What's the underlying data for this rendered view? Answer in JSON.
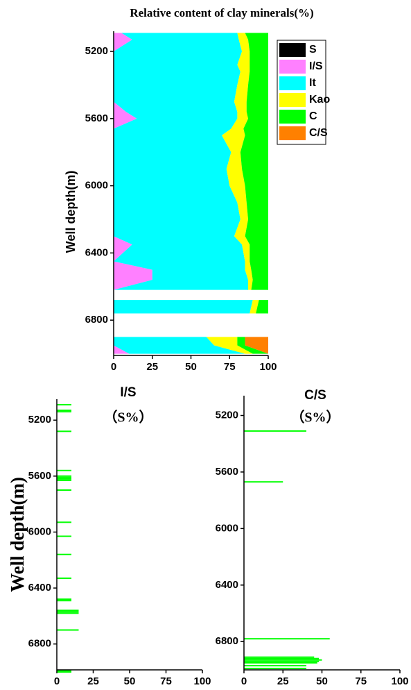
{
  "chart_data": [
    {
      "type": "area",
      "title": "Relative content of clay minerals(%)",
      "ylabel": "Well depth(m)",
      "y": [
        5090,
        5130,
        5200,
        5280,
        5320,
        5400,
        5500,
        5560,
        5600,
        5660,
        5700,
        5800,
        5900,
        6000,
        6100,
        6200,
        6300,
        6350,
        6450,
        6500,
        6560,
        6620,
        6650,
        6680,
        6760,
        6790,
        6900,
        6950,
        7000
      ],
      "series": [
        {
          "name": "S",
          "color": "#000000",
          "values": [
            0,
            0,
            0,
            0,
            0,
            0,
            0,
            0,
            0,
            0,
            0,
            0,
            0,
            0,
            0,
            0,
            0,
            0,
            0,
            0,
            0,
            0,
            null,
            0,
            0,
            null,
            0,
            0,
            0
          ]
        },
        {
          "name": "I/S",
          "color": "#ff80ff",
          "values": [
            5,
            12,
            0,
            0,
            0,
            0,
            0,
            8,
            15,
            0,
            0,
            0,
            0,
            0,
            0,
            0,
            0,
            12,
            0,
            25,
            25,
            0,
            null,
            0,
            0,
            null,
            0,
            0,
            10
          ]
        },
        {
          "name": "It",
          "color": "#00ffff",
          "values": [
            75,
            69,
            83,
            80,
            82,
            80,
            78,
            72,
            65,
            76,
            70,
            76,
            73,
            75,
            80,
            82,
            78,
            71,
            85,
            60,
            62,
            87,
            null,
            90,
            88,
            null,
            60,
            65,
            75
          ]
        },
        {
          "name": "Kao",
          "color": "#ffff00",
          "values": [
            5,
            6,
            5,
            8,
            6,
            7,
            8,
            6,
            7,
            8,
            15,
            6,
            10,
            10,
            6,
            5,
            7,
            5,
            3,
            4,
            3,
            2,
            null,
            4,
            4,
            null,
            20,
            15,
            5
          ]
        },
        {
          "name": "C",
          "color": "#00ff00",
          "values": [
            15,
            13,
            12,
            12,
            12,
            13,
            14,
            14,
            13,
            16,
            15,
            18,
            17,
            15,
            14,
            13,
            15,
            12,
            12,
            11,
            10,
            11,
            null,
            6,
            8,
            null,
            5,
            5,
            10
          ]
        },
        {
          "name": "C/S",
          "color": "#ff8000",
          "values": [
            0,
            0,
            0,
            0,
            0,
            0,
            0,
            0,
            0,
            0,
            0,
            0,
            0,
            0,
            0,
            0,
            0,
            0,
            0,
            0,
            0,
            0,
            null,
            0,
            0,
            null,
            15,
            15,
            0
          ]
        }
      ],
      "xlim": [
        0,
        100
      ],
      "xticks": [
        0,
        25,
        50,
        75,
        100
      ],
      "ylim": [
        5080,
        7010
      ],
      "yticks": [
        5200,
        5600,
        6000,
        6400,
        6800
      ],
      "legend": "upper right"
    },
    {
      "type": "bar",
      "title": "I/S",
      "subtitle": "（S%）",
      "ylabel": "Well depth(m)",
      "y": [
        5090,
        5130,
        5140,
        5280,
        5560,
        5600,
        5610,
        5620,
        5630,
        5700,
        5930,
        6030,
        6160,
        6330,
        6480,
        6490,
        6560,
        6570,
        6580,
        6700,
        6990,
        7000
      ],
      "values": [
        10,
        10,
        10,
        10,
        10,
        10,
        10,
        10,
        10,
        10,
        10,
        10,
        10,
        10,
        10,
        10,
        15,
        15,
        15,
        15,
        10,
        10
      ],
      "color": "#00ff00",
      "xlim": [
        0,
        100
      ],
      "xticks": [
        0,
        25,
        50,
        75,
        100
      ],
      "ylim": [
        5050,
        6985
      ],
      "yticks": [
        5200,
        5600,
        6000,
        6400,
        6800
      ]
    },
    {
      "type": "bar",
      "title": "C/S",
      "subtitle": "（S%）",
      "y": [
        5310,
        5670,
        6780,
        6910,
        6920,
        6930,
        6940,
        6950,
        6970,
        6990
      ],
      "values": [
        40,
        25,
        55,
        45,
        48,
        50,
        48,
        47,
        40,
        40
      ],
      "color": "#00ff00",
      "xlim": [
        0,
        100
      ],
      "xticks": [
        0,
        25,
        50,
        75,
        100
      ],
      "ylim": [
        5060,
        7000
      ],
      "yticks": [
        5200,
        5600,
        6000,
        6400,
        6800
      ]
    }
  ]
}
